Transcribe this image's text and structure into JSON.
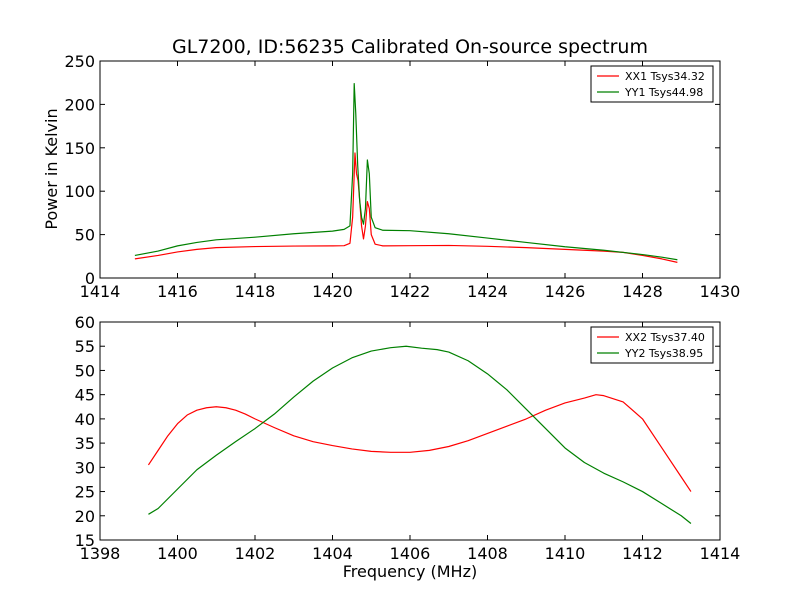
{
  "chart_data": [
    {
      "type": "line",
      "title": "GL7200, ID:56235 Calibrated On-source spectrum",
      "xlabel": "",
      "ylabel": "Power in Kelvin",
      "xlim": [
        1414,
        1430
      ],
      "ylim": [
        0,
        250
      ],
      "xticks": [
        1414,
        1416,
        1418,
        1420,
        1422,
        1424,
        1426,
        1428,
        1430
      ],
      "yticks": [
        0,
        50,
        100,
        150,
        200,
        250
      ],
      "grid": false,
      "legend_position": "top-right",
      "series": [
        {
          "name": "XX1 Tsys34.32",
          "color": "#ff0000",
          "points": [
            [
              1414.9,
              22
            ],
            [
              1415.5,
              26
            ],
            [
              1416,
              30
            ],
            [
              1416.5,
              33
            ],
            [
              1417,
              35
            ],
            [
              1418,
              36.2
            ],
            [
              1419,
              36.8
            ],
            [
              1420,
              37
            ],
            [
              1420.3,
              37.2
            ],
            [
              1420.45,
              40
            ],
            [
              1420.52,
              70
            ],
            [
              1420.58,
              144
            ],
            [
              1420.62,
              120
            ],
            [
              1420.66,
              112
            ],
            [
              1420.7,
              90
            ],
            [
              1420.75,
              60
            ],
            [
              1420.8,
              45
            ],
            [
              1420.85,
              60
            ],
            [
              1420.9,
              88
            ],
            [
              1420.95,
              80
            ],
            [
              1421,
              50
            ],
            [
              1421.1,
              39
            ],
            [
              1421.3,
              37
            ],
            [
              1422,
              37.2
            ],
            [
              1423,
              37.5
            ],
            [
              1424,
              36.5
            ],
            [
              1425,
              35
            ],
            [
              1426,
              33
            ],
            [
              1427,
              31
            ],
            [
              1427.5,
              29.5
            ],
            [
              1428,
              26
            ],
            [
              1428.5,
              22
            ],
            [
              1428.9,
              18
            ]
          ]
        },
        {
          "name": "YY1 Tsys44.98",
          "color": "#008000",
          "points": [
            [
              1414.9,
              26
            ],
            [
              1415.5,
              31
            ],
            [
              1416,
              37
            ],
            [
              1416.5,
              41
            ],
            [
              1417,
              44
            ],
            [
              1418,
              47
            ],
            [
              1419,
              51
            ],
            [
              1420,
              54
            ],
            [
              1420.3,
              56
            ],
            [
              1420.45,
              60
            ],
            [
              1420.52,
              120
            ],
            [
              1420.56,
              224
            ],
            [
              1420.6,
              190
            ],
            [
              1420.65,
              130
            ],
            [
              1420.7,
              90
            ],
            [
              1420.75,
              70
            ],
            [
              1420.8,
              62
            ],
            [
              1420.85,
              80
            ],
            [
              1420.9,
              136
            ],
            [
              1420.95,
              120
            ],
            [
              1421,
              70
            ],
            [
              1421.1,
              58
            ],
            [
              1421.3,
              55
            ],
            [
              1422,
              54.5
            ],
            [
              1423,
              51
            ],
            [
              1424,
              46
            ],
            [
              1425,
              41
            ],
            [
              1426,
              36
            ],
            [
              1427,
              32
            ],
            [
              1428,
              27
            ],
            [
              1428.5,
              24
            ],
            [
              1428.9,
              21
            ]
          ]
        }
      ]
    },
    {
      "type": "line",
      "title": "",
      "xlabel": "Frequency (MHz)",
      "ylabel": "",
      "xlim": [
        1398,
        1414
      ],
      "ylim": [
        15,
        60
      ],
      "xticks": [
        1398,
        1400,
        1402,
        1404,
        1406,
        1408,
        1410,
        1412,
        1414
      ],
      "yticks": [
        15,
        20,
        25,
        30,
        35,
        40,
        45,
        50,
        55,
        60
      ],
      "grid": false,
      "legend_position": "top-right",
      "series": [
        {
          "name": "XX2 Tsys37.40",
          "color": "#ff0000",
          "points": [
            [
              1399.25,
              30.5
            ],
            [
              1399.5,
              33.5
            ],
            [
              1399.75,
              36.5
            ],
            [
              1400,
              39
            ],
            [
              1400.25,
              40.8
            ],
            [
              1400.5,
              41.8
            ],
            [
              1400.75,
              42.3
            ],
            [
              1401,
              42.5
            ],
            [
              1401.25,
              42.3
            ],
            [
              1401.5,
              41.8
            ],
            [
              1401.75,
              41
            ],
            [
              1402,
              40
            ],
            [
              1402.5,
              38.2
            ],
            [
              1403,
              36.5
            ],
            [
              1403.5,
              35.3
            ],
            [
              1404,
              34.5
            ],
            [
              1404.5,
              33.8
            ],
            [
              1405,
              33.3
            ],
            [
              1405.5,
              33.1
            ],
            [
              1406,
              33.1
            ],
            [
              1406.5,
              33.5
            ],
            [
              1407,
              34.3
            ],
            [
              1407.5,
              35.5
            ],
            [
              1408,
              37
            ],
            [
              1408.5,
              38.5
            ],
            [
              1409,
              40
            ],
            [
              1409.5,
              41.8
            ],
            [
              1410,
              43.3
            ],
            [
              1410.5,
              44.3
            ],
            [
              1410.8,
              45
            ],
            [
              1411,
              44.8
            ],
            [
              1411.5,
              43.5
            ],
            [
              1412,
              40
            ],
            [
              1412.5,
              34
            ],
            [
              1413,
              28
            ],
            [
              1413.25,
              25
            ]
          ]
        },
        {
          "name": "YY2 Tsys38.95",
          "color": "#008000",
          "points": [
            [
              1399.25,
              20.3
            ],
            [
              1399.5,
              21.5
            ],
            [
              1400,
              25.5
            ],
            [
              1400.5,
              29.5
            ],
            [
              1401,
              32.5
            ],
            [
              1401.5,
              35.3
            ],
            [
              1402,
              38
            ],
            [
              1402.5,
              41
            ],
            [
              1403,
              44.5
            ],
            [
              1403.5,
              47.8
            ],
            [
              1404,
              50.5
            ],
            [
              1404.5,
              52.6
            ],
            [
              1405,
              54
            ],
            [
              1405.5,
              54.7
            ],
            [
              1405.9,
              55
            ],
            [
              1406.3,
              54.6
            ],
            [
              1406.7,
              54.3
            ],
            [
              1407,
              53.8
            ],
            [
              1407.5,
              52
            ],
            [
              1408,
              49.3
            ],
            [
              1408.5,
              46
            ],
            [
              1409,
              42
            ],
            [
              1409.5,
              38
            ],
            [
              1410,
              34
            ],
            [
              1410.5,
              31
            ],
            [
              1411,
              28.8
            ],
            [
              1411.5,
              27
            ],
            [
              1412,
              25
            ],
            [
              1412.5,
              22.5
            ],
            [
              1413,
              20
            ],
            [
              1413.25,
              18.4
            ]
          ]
        }
      ]
    }
  ]
}
